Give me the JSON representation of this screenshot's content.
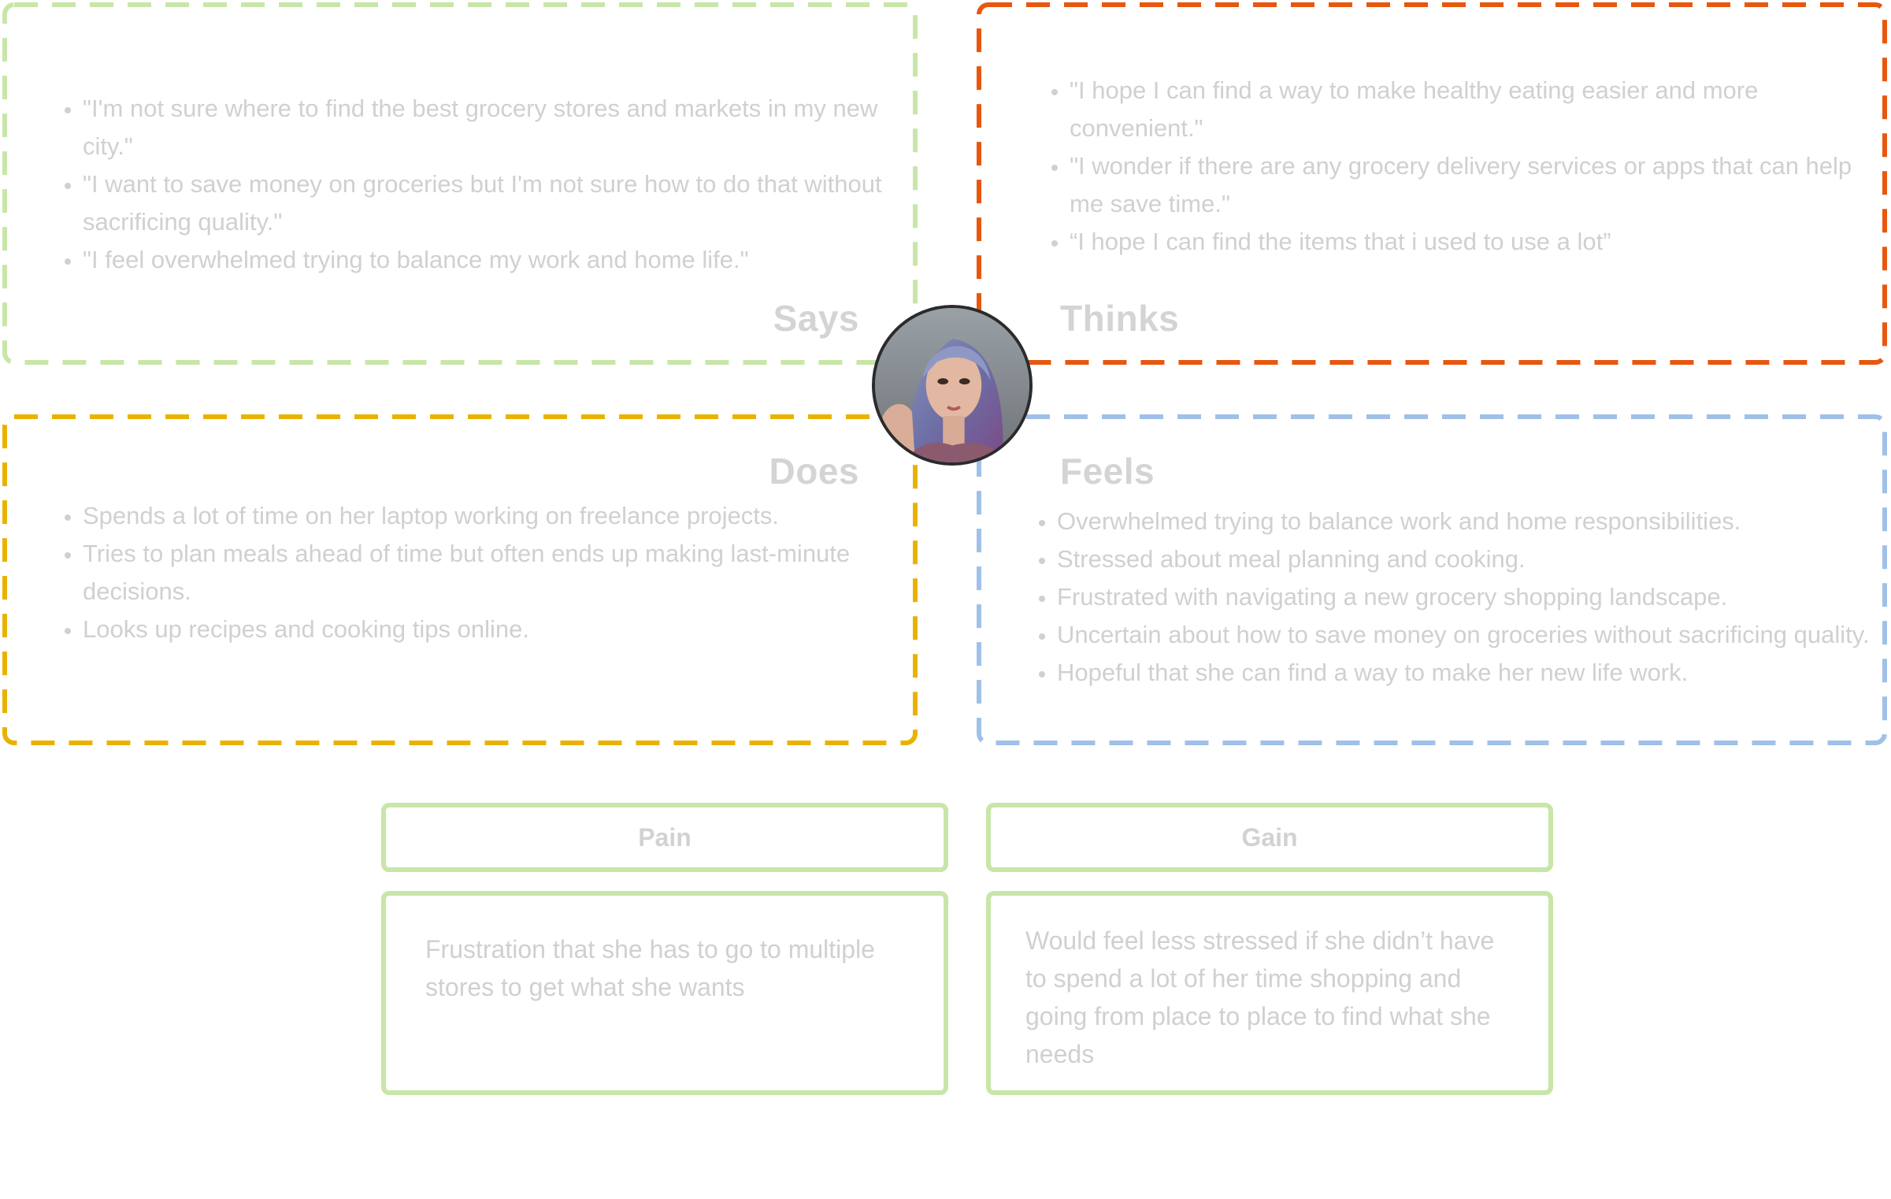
{
  "colors": {
    "says": "#c7e6a8",
    "thinks": "#e8570f",
    "does": "#eab200",
    "feels": "#a0c0e8",
    "pain_gain_border": "#c7e6a8",
    "text": "#d0d0d0"
  },
  "avatar": {
    "icon": "user-portrait",
    "description_role": "persona photo"
  },
  "says": {
    "title": "Says",
    "items": [
      "\"I'm not sure where to find the best grocery stores and markets in my new city.\"",
      "\"I want to save money on groceries but I'm not sure how to do that without sacrificing quality.\"",
      "\"I feel overwhelmed trying to balance my work and home life.\""
    ]
  },
  "thinks": {
    "title": "Thinks",
    "items": [
      "\"I hope I can find a way to make healthy eating easier and more convenient.\"",
      "\"I wonder if there are any grocery delivery services or apps that can help me save time.\"",
      "“I hope I can find the items that i used to use a lot”"
    ]
  },
  "does": {
    "title": "Does",
    "items": [
      "Spends a lot of time on her laptop working on freelance projects.",
      "Tries to plan meals ahead of time but often ends up making last-minute decisions.",
      "Looks up recipes and cooking tips online."
    ]
  },
  "feels": {
    "title": "Feels",
    "items": [
      "Overwhelmed trying to balance work and home responsibilities.",
      "Stressed about meal planning and cooking.",
      "Frustrated with navigating a new grocery shopping landscape.",
      "Uncertain about how to save money on groceries without sacrificing quality.",
      "Hopeful that she can find a way to make her new life work."
    ]
  },
  "pain": {
    "title": "Pain",
    "text": "Frustration that she has to go to multiple stores to get what she wants"
  },
  "gain": {
    "title": "Gain",
    "text": "Would feel less stressed if she didn’t have to spend a lot of her time shopping and going from place to place to find what she needs"
  }
}
